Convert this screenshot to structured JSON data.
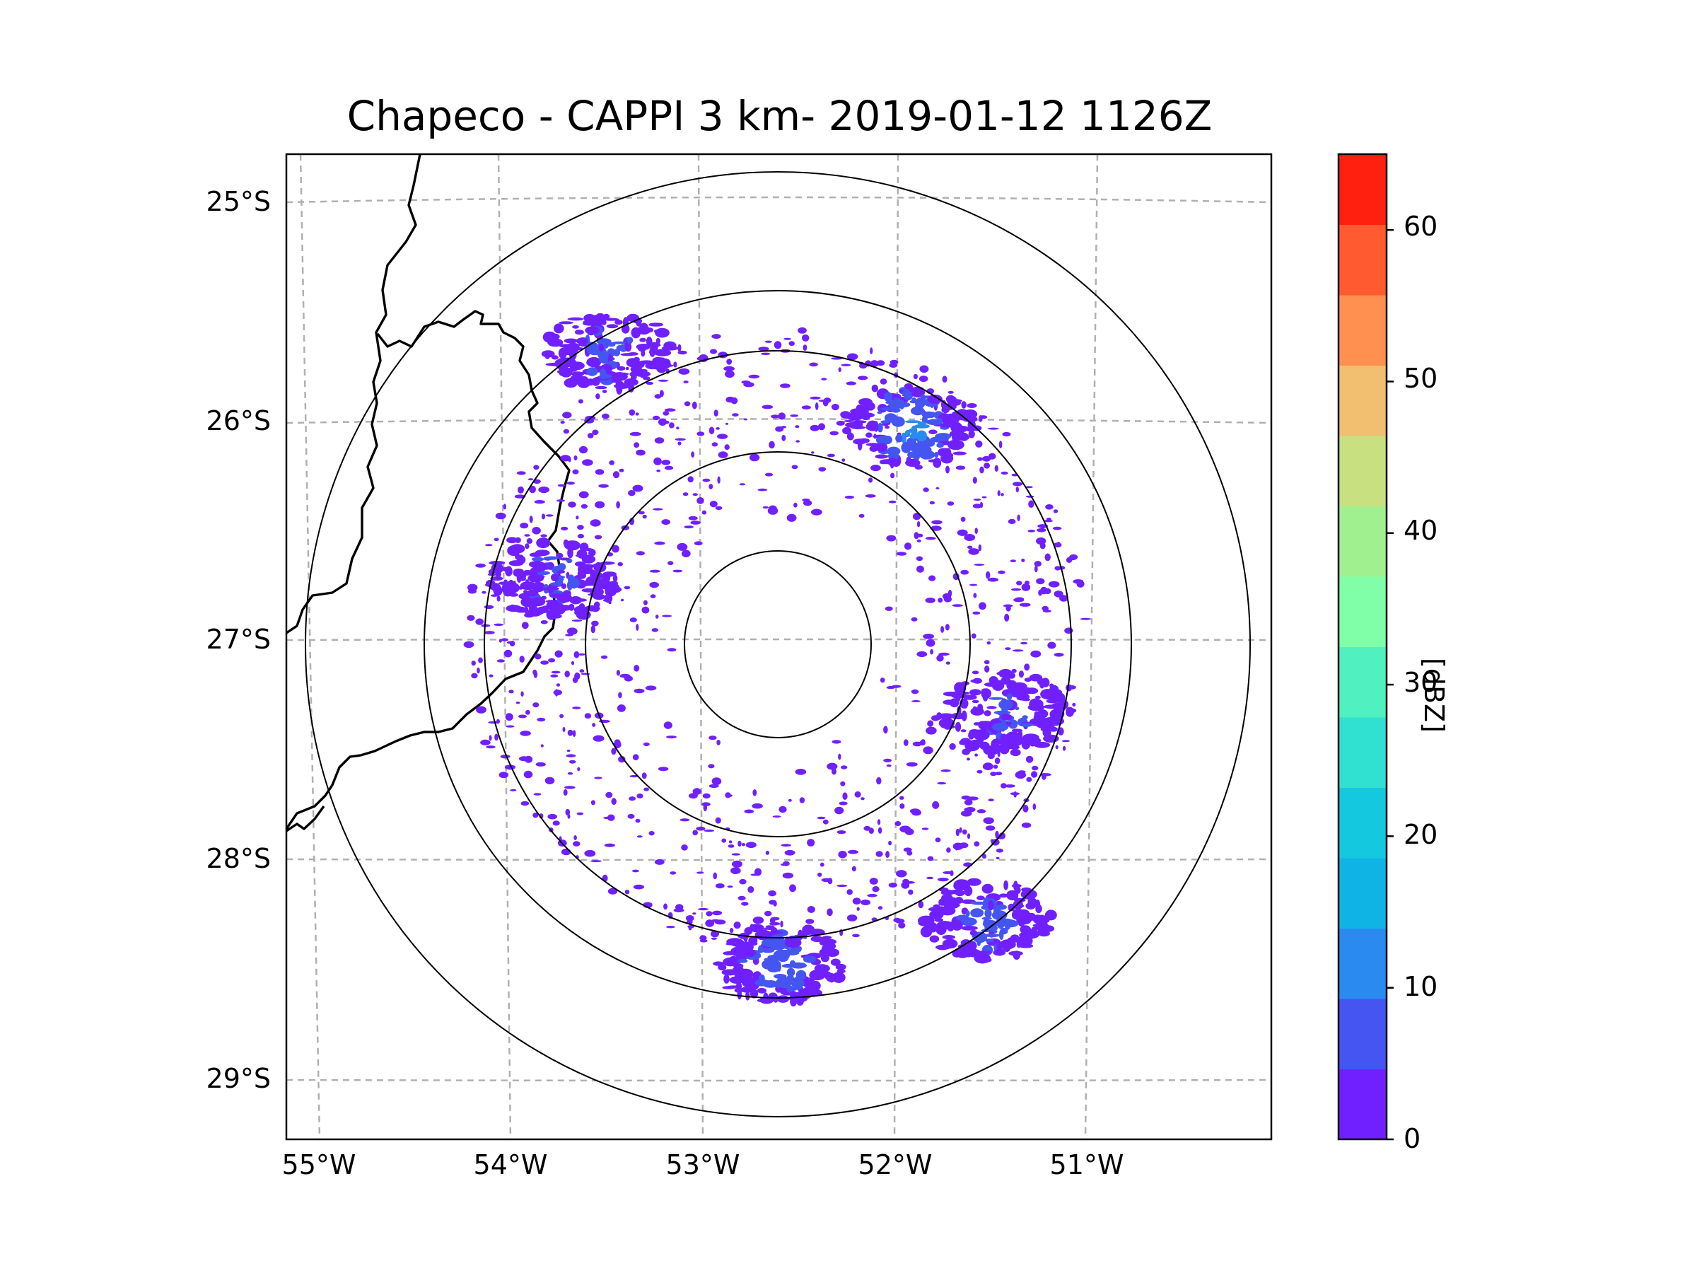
{
  "title": "Chapeco - CAPPI 3 km- 2019-01-12 1126Z",
  "lat_labels": [
    "25°S",
    "26°S",
    "27°S",
    "28°S",
    "29°S"
  ],
  "lon_labels": [
    "55°W",
    "54°W",
    "53°W",
    "52°W",
    "51°W"
  ],
  "colorbar": {
    "label": "[dBZ]",
    "tick_labels": [
      "0",
      "10",
      "20",
      "30",
      "40",
      "50",
      "60"
    ],
    "min": 0,
    "max": 65,
    "step": 5,
    "colors": [
      "#7020ff",
      "#4555f2",
      "#2a8af0",
      "#10b4e4",
      "#14c8e0",
      "#30e0d0",
      "#50f0c0",
      "#80ffa8",
      "#a0f090",
      "#c8e080",
      "#f0c070",
      "#ff9050",
      "#ff5a30",
      "#ff2010"
    ]
  },
  "chart_data": {
    "type": "radar-map",
    "title": "Chapeco - CAPPI 3 km- 2019-01-12 1126Z",
    "xlabel": "",
    "ylabel": "",
    "lon_range": [
      -55.2,
      -50.0
    ],
    "lat_range": [
      -29.3,
      -24.8
    ],
    "radar_center": {
      "lon": -52.6,
      "lat": -27.02
    },
    "range_rings_km": [
      50,
      100,
      150,
      200,
      250
    ],
    "colorbar_label": "[dBZ]",
    "colorbar_range": [
      0,
      65
    ],
    "echoes": [
      {
        "region": "northwest band",
        "lon": -53.5,
        "lat": -25.7,
        "dbz": 5
      },
      {
        "region": "north-northeast cell",
        "lon": -51.9,
        "lat": -26.05,
        "dbz": 12
      },
      {
        "region": "east cluster",
        "lon": -51.4,
        "lat": -27.35,
        "dbz": 5
      },
      {
        "region": "west cluster",
        "lon": -53.8,
        "lat": -26.75,
        "dbz": 5
      },
      {
        "region": "south cell",
        "lon": -52.6,
        "lat": -28.5,
        "dbz": 8
      },
      {
        "region": "southeast cell",
        "lon": -51.5,
        "lat": -28.3,
        "dbz": 6
      }
    ]
  }
}
